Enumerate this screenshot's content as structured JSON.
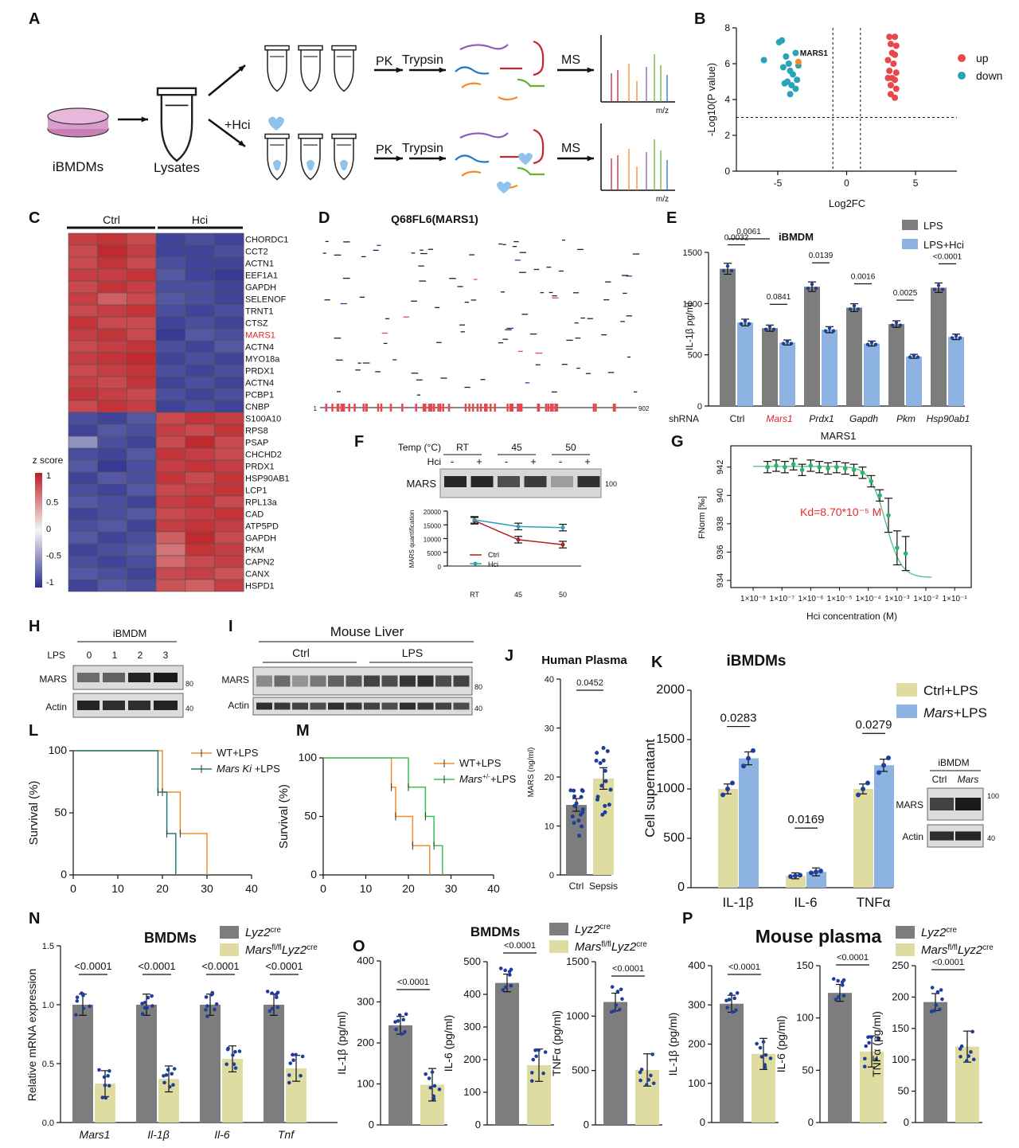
{
  "panel_letters": [
    "A",
    "B",
    "C",
    "D",
    "E",
    "F",
    "G",
    "H",
    "I",
    "J",
    "K",
    "L",
    "M",
    "N",
    "O",
    "P"
  ],
  "colors": {
    "grey": "#7d7d7d",
    "blue": "#8db3e2",
    "yellow": "#dedca0",
    "red": "#e8474b",
    "teal": "#2aa2b8",
    "orange": "#f08c2c",
    "green": "#2bb56a",
    "dark_red": "#b22025",
    "heat_red": "#bd1e24",
    "heat_blue": "#2d2f8e",
    "dot": "#1f3e9a"
  },
  "panel_a": {
    "cells_label": "iBMDMs",
    "lysates_label": "Lysates",
    "hci_label": "+Hci",
    "pk": "PK",
    "trypsin": "Trypsin",
    "ms": "MS",
    "mz": "m/z"
  },
  "chart_data": [
    {
      "panel": "B",
      "type": "scatter",
      "xlabel": "Log2FC",
      "ylabel": "-Log10(P value)",
      "xlim": [
        -8,
        8
      ],
      "ylim": [
        0,
        8
      ],
      "xticks": [
        "-5",
        "0",
        "5"
      ],
      "yticks": [
        "0",
        "2",
        "4",
        "6",
        "8"
      ],
      "highlight": "MARS1",
      "legend": [
        "up",
        "down"
      ],
      "up": [
        [
          3.1,
          7.5
        ],
        [
          3.5,
          7.5
        ],
        [
          3.2,
          7.1
        ],
        [
          3.6,
          7.0
        ],
        [
          3.3,
          6.6
        ],
        [
          3.5,
          6.5
        ],
        [
          3.0,
          6.2
        ],
        [
          3.4,
          6.0
        ],
        [
          3.1,
          5.6
        ],
        [
          3.6,
          5.5
        ],
        [
          3.0,
          5.2
        ],
        [
          3.3,
          5.2
        ],
        [
          3.5,
          5.1
        ],
        [
          3.2,
          4.8
        ],
        [
          3.6,
          4.6
        ],
        [
          3.2,
          4.3
        ],
        [
          3.5,
          4.1
        ]
      ],
      "down": [
        [
          -4.9,
          7.2
        ],
        [
          -4.7,
          7.3
        ],
        [
          -6.0,
          6.2
        ],
        [
          -4.4,
          6.4
        ],
        [
          -3.7,
          6.6
        ],
        [
          -4.2,
          6.0
        ],
        [
          -4.6,
          5.8
        ],
        [
          -3.5,
          5.9
        ],
        [
          -4.1,
          5.6
        ],
        [
          -3.9,
          5.4
        ],
        [
          -4.3,
          5.0
        ],
        [
          -3.6,
          5.1
        ],
        [
          -4.5,
          4.9
        ],
        [
          -4.0,
          4.8
        ],
        [
          -3.7,
          4.6
        ],
        [
          -4.1,
          4.3
        ]
      ],
      "mars1": [
        -3.5,
        6.1
      ]
    },
    {
      "panel": "C",
      "type": "heatmap",
      "groups": [
        "Ctrl",
        "Hci"
      ],
      "legend_title": "z score",
      "legend_ticks": [
        "1",
        "0.5",
        "0",
        "-0.5",
        "-1"
      ],
      "rows": [
        "CHORDC1",
        "CCT2",
        "ACTN1",
        "EEF1A1",
        "GAPDH",
        "SELENOF",
        "TRNT1",
        "CTSZ",
        "MARS1",
        "ACTN4",
        "MYO18a",
        "PRDX1",
        "ACTN4",
        "PCBP1",
        "CNBP",
        "S100A10",
        "RPS8",
        "PSAP",
        "CHCHD2",
        "PRDX1",
        "HSP90AB1",
        "LCP1",
        "RPL13a",
        "CAD",
        "ATP5PD",
        "GAPDH",
        "PKM",
        "CAPN2",
        "CANX",
        "HSPD1"
      ],
      "values": [
        [
          0.85,
          0.9,
          0.8,
          -0.9,
          -0.85,
          -0.9
        ],
        [
          0.8,
          0.95,
          0.85,
          -0.9,
          -0.9,
          -0.85
        ],
        [
          0.8,
          0.9,
          0.8,
          -0.85,
          -0.9,
          -0.9
        ],
        [
          0.85,
          0.85,
          0.9,
          -0.8,
          -0.9,
          -0.95
        ],
        [
          0.8,
          0.9,
          0.85,
          -0.85,
          -0.85,
          -0.9
        ],
        [
          0.85,
          0.7,
          0.8,
          -0.8,
          -0.85,
          -0.9
        ],
        [
          0.8,
          0.85,
          0.9,
          -0.85,
          -0.9,
          -0.85
        ],
        [
          0.9,
          0.8,
          0.8,
          -0.9,
          -0.85,
          -0.9
        ],
        [
          0.85,
          0.9,
          0.8,
          -0.95,
          -0.8,
          -0.85
        ],
        [
          0.8,
          0.85,
          0.9,
          -0.85,
          -0.9,
          -0.8
        ],
        [
          0.85,
          0.9,
          0.95,
          -0.9,
          -0.85,
          -0.9
        ],
        [
          0.8,
          0.85,
          0.9,
          -0.85,
          -0.9,
          -0.85
        ],
        [
          0.85,
          0.8,
          0.9,
          -0.9,
          -0.85,
          -0.9
        ],
        [
          0.9,
          0.85,
          0.8,
          -0.85,
          -0.9,
          -0.85
        ],
        [
          0.8,
          0.9,
          0.85,
          -0.9,
          -0.85,
          -0.9
        ],
        [
          -0.85,
          -0.9,
          -0.8,
          0.8,
          0.9,
          0.85
        ],
        [
          -0.9,
          -0.8,
          -0.85,
          0.85,
          0.8,
          0.9
        ],
        [
          -0.5,
          -0.85,
          -0.9,
          0.8,
          0.95,
          0.8
        ],
        [
          -0.85,
          -0.9,
          -0.8,
          0.9,
          0.85,
          0.8
        ],
        [
          -0.8,
          -0.95,
          -0.85,
          0.85,
          0.9,
          0.85
        ],
        [
          -0.9,
          -0.8,
          -0.85,
          0.9,
          0.8,
          0.9
        ],
        [
          -0.85,
          -0.9,
          -0.8,
          0.8,
          0.85,
          0.9
        ],
        [
          -0.8,
          -0.85,
          -0.9,
          0.85,
          0.9,
          0.8
        ],
        [
          -0.9,
          -0.85,
          -0.8,
          0.8,
          0.85,
          0.9
        ],
        [
          -0.85,
          -0.8,
          -0.9,
          0.85,
          0.9,
          0.85
        ],
        [
          -0.8,
          -0.9,
          -0.85,
          0.7,
          0.95,
          0.8
        ],
        [
          -0.9,
          -0.85,
          -0.8,
          0.6,
          0.9,
          0.85
        ],
        [
          -0.85,
          -0.9,
          -0.85,
          0.65,
          0.8,
          0.85
        ],
        [
          -0.8,
          -0.85,
          -0.9,
          0.8,
          0.85,
          0.75
        ],
        [
          -0.9,
          -0.8,
          -0.85,
          0.75,
          0.7,
          0.85
        ]
      ]
    },
    {
      "panel": "D",
      "type": "peptide_map",
      "title": "Q68FL6(MARS1)",
      "start": "1",
      "end": "902"
    },
    {
      "panel": "E",
      "type": "bar",
      "title": "iBMDM",
      "ylabel": "IL-1β pg/ml",
      "xlabel": "shRNA",
      "ylim": [
        0,
        1500
      ],
      "yticks": [
        "0",
        "500",
        "1000",
        "1500"
      ],
      "categories": [
        "Ctrl",
        "Mars1",
        "Prdx1",
        "Gapdh",
        "Pkm",
        "Hsp90ab1"
      ],
      "series": [
        {
          "name": "LPS",
          "values": [
            1340,
            760,
            1165,
            960,
            800,
            1155
          ]
        },
        {
          "name": "LPS+Hci",
          "values": [
            815,
            620,
            745,
            610,
            485,
            675
          ]
        }
      ],
      "pvalues": [
        "0.0032",
        "0.0841",
        "0.0139",
        "0.0016",
        "0.0025",
        "<0.0001"
      ],
      "p_extra": "0.0061"
    },
    {
      "panel": "F",
      "type": "line",
      "ylabel": "MARS quantification",
      "categories": [
        "RT",
        "45",
        "50"
      ],
      "ylim": [
        0,
        20000
      ],
      "yticks": [
        "0",
        "5000",
        "10000",
        "15000",
        "20000"
      ],
      "series": [
        {
          "name": "Ctrl",
          "values": [
            16500,
            9600,
            7800
          ]
        },
        {
          "name": "Hci",
          "values": [
            16800,
            14400,
            14000
          ]
        }
      ],
      "blot": {
        "temp_label": "Temp (°C)",
        "temps": [
          "RT",
          "45",
          "50"
        ],
        "hci_label": "Hci",
        "signs": [
          "-",
          "+",
          "-",
          "+",
          "-",
          "+"
        ],
        "protein": "MARS",
        "marker": "100"
      }
    },
    {
      "panel": "G",
      "type": "scatter",
      "title": "MARS1",
      "xlabel": "Hci concentration (M)",
      "ylabel": "FNorm [‰]",
      "annotation": "Kd=8.70*10⁻⁵ M",
      "ylim": [
        934,
        943
      ],
      "yticks": [
        "934",
        "936",
        "938",
        "940",
        "942"
      ],
      "xticks": [
        "1×10⁻⁸",
        "1×10⁻⁷",
        "1×10⁻⁶",
        "1×10⁻⁵",
        "1×10⁻⁴",
        "1×10⁻³",
        "1×10⁻²",
        "1×10⁻¹"
      ],
      "points_log10x": [
        [
          -7.5,
          942.0
        ],
        [
          -7.2,
          942.1
        ],
        [
          -6.9,
          942.0
        ],
        [
          -6.6,
          942.2
        ],
        [
          -6.3,
          941.8
        ],
        [
          -6.0,
          942.1
        ],
        [
          -5.7,
          942.0
        ],
        [
          -5.4,
          941.9
        ],
        [
          -5.1,
          942.0
        ],
        [
          -4.8,
          941.9
        ],
        [
          -4.5,
          941.8
        ],
        [
          -4.2,
          941.6
        ],
        [
          -3.9,
          941.0
        ],
        [
          -3.6,
          940.0
        ],
        [
          -3.3,
          938.6
        ],
        [
          -3.0,
          936.3
        ],
        [
          -2.7,
          935.9
        ]
      ]
    },
    {
      "panel": "J",
      "type": "bar",
      "title": "Human Plasma",
      "ylabel": "MARS (ng/ml)",
      "categories": [
        "Ctrl",
        "Sepsis"
      ],
      "values": [
        14.3,
        19.7
      ],
      "ylim": [
        0,
        40
      ],
      "yticks": [
        "0",
        "10",
        "20",
        "30",
        "40"
      ],
      "pvalue": "0.0452"
    },
    {
      "panel": "K",
      "type": "bar",
      "title": "iBMDMs",
      "ylabel": "Cell supernatant",
      "categories": [
        "IL-1β",
        "IL-6",
        "TNFα"
      ],
      "ylim": [
        0,
        2000
      ],
      "yticks": [
        "0",
        "500",
        "1000",
        "1500",
        "2000"
      ],
      "series": [
        {
          "name": "Ctrl+LPS",
          "values": [
            1000,
            120,
            1000
          ]
        },
        {
          "name": "Mars+LPS",
          "values": [
            1310,
            160,
            1240
          ]
        }
      ],
      "pvalues": [
        "0.0283",
        "0.0169",
        "0.0279"
      ],
      "blot": {
        "title": "iBMDM",
        "lanes": [
          "Ctrl",
          "Mars"
        ],
        "proteins": [
          "MARS",
          "Actin"
        ],
        "markers": [
          "100",
          "40"
        ]
      }
    },
    {
      "panel": "L",
      "type": "line",
      "ylabel": "Survival (%)",
      "xlim": [
        0,
        40
      ],
      "ylim": [
        0,
        100
      ],
      "xticks": [
        "0",
        "10",
        "20",
        "30",
        "40"
      ],
      "yticks": [
        "0",
        "50",
        "100"
      ],
      "series": [
        {
          "name": "WT+LPS",
          "steps": [
            [
              0,
              100
            ],
            [
              20,
              100
            ],
            [
              20,
              66.7
            ],
            [
              24,
              66.7
            ],
            [
              24,
              33.3
            ],
            [
              30,
              33.3
            ],
            [
              30,
              0
            ]
          ]
        },
        {
          "name": "Mars Ki +LPS",
          "steps": [
            [
              0,
              100
            ],
            [
              19,
              100
            ],
            [
              19,
              66.7
            ],
            [
              21,
              66.7
            ],
            [
              21,
              33.3
            ],
            [
              23,
              33.3
            ],
            [
              23,
              0
            ]
          ]
        }
      ]
    },
    {
      "panel": "M",
      "type": "line",
      "ylabel": "Survival (%)",
      "xlim": [
        0,
        40
      ],
      "ylim": [
        0,
        100
      ],
      "xticks": [
        "0",
        "10",
        "20",
        "30",
        "40"
      ],
      "yticks": [
        "0",
        "50",
        "100"
      ],
      "series": [
        {
          "name": "WT+LPS",
          "steps": [
            [
              0,
              100
            ],
            [
              16,
              100
            ],
            [
              16,
              75
            ],
            [
              17,
              75
            ],
            [
              17,
              50
            ],
            [
              21,
              50
            ],
            [
              21,
              25
            ],
            [
              25,
              25
            ],
            [
              25,
              0
            ]
          ]
        },
        {
          "name": "Mars+/-+LPS",
          "steps": [
            [
              0,
              100
            ],
            [
              20,
              100
            ],
            [
              20,
              75
            ],
            [
              24,
              75
            ],
            [
              24,
              50
            ],
            [
              26,
              50
            ],
            [
              26,
              25
            ],
            [
              28,
              25
            ],
            [
              28,
              0
            ]
          ]
        }
      ]
    },
    {
      "panel": "N",
      "type": "bar",
      "title": "BMDMs",
      "ylabel": "Relative mRNA expression",
      "categories": [
        "Mars1",
        "Il-1β",
        "Il-6",
        "Tnf"
      ],
      "ylim": [
        0,
        1.5
      ],
      "yticks": [
        "0.0",
        "0.5",
        "1.0",
        "1.5"
      ],
      "series": [
        {
          "name": "Lyz2cre",
          "values": [
            1.0,
            1.0,
            1.0,
            1.0
          ]
        },
        {
          "name": "Marsfl/flLyz2cre",
          "values": [
            0.33,
            0.37,
            0.54,
            0.46
          ]
        }
      ],
      "pvalues": [
        "<0.0001",
        "<0.0001",
        "<0.0001",
        "<0.0001"
      ]
    },
    {
      "panel": "O",
      "type": "bar",
      "title": "BMDMs",
      "subplots": [
        {
          "ylabel": "IL-1β (pg/ml)",
          "ylim": [
            0,
            400
          ],
          "yticks": [
            "0",
            "100",
            "200",
            "300",
            "400"
          ],
          "values": [
            243,
            98
          ],
          "pvalue": "<0.0001"
        },
        {
          "ylabel": "IL-6 (pg/ml)",
          "ylim": [
            0,
            500
          ],
          "yticks": [
            "0",
            "100",
            "200",
            "300",
            "400",
            "500"
          ],
          "values": [
            435,
            183
          ],
          "pvalue": "<0.0001"
        },
        {
          "ylabel": "TNFα (pg/ml)",
          "ylim": [
            0,
            1500
          ],
          "yticks": [
            "0",
            "500",
            "1000",
            "1500"
          ],
          "values": [
            1130,
            505
          ],
          "pvalue": "<0.0001"
        }
      ],
      "legend": [
        "Lyz2cre",
        "Marsfl/flLyz2cre"
      ]
    },
    {
      "panel": "P",
      "type": "bar",
      "title": "Mouse plasma",
      "subplots": [
        {
          "ylabel": "IL-1β (pg/ml)",
          "ylim": [
            0,
            400
          ],
          "yticks": [
            "0",
            "100",
            "200",
            "300",
            "400"
          ],
          "values": [
            303,
            175
          ],
          "pvalue": "<0.0001"
        },
        {
          "ylabel": "IL-6 (pg/ml)",
          "ylim": [
            0,
            150
          ],
          "yticks": [
            "0",
            "50",
            "100",
            "150"
          ],
          "values": [
            124,
            68
          ],
          "pvalue": "<0.0001"
        },
        {
          "ylabel": "TNFα (pg/ml)",
          "ylim": [
            0,
            250
          ],
          "yticks": [
            "0",
            "50",
            "100",
            "150",
            "200",
            "250"
          ],
          "values": [
            192,
            121
          ],
          "pvalue": "<0.0001"
        }
      ],
      "legend": [
        "Lyz2cre",
        "Marsfl/flLyz2cre"
      ]
    }
  ],
  "blot_h": {
    "title": "iBMDM",
    "lps_label": "LPS",
    "lanes": [
      "0",
      "1",
      "2",
      "3"
    ],
    "proteins": [
      "MARS",
      "Actin"
    ],
    "markers": [
      "80",
      "40"
    ]
  },
  "blot_i": {
    "title": "Mouse Liver",
    "groups": [
      "Ctrl",
      "LPS"
    ],
    "proteins": [
      "MARS",
      "Actin"
    ],
    "markers": [
      "80",
      "40"
    ]
  },
  "legend_text": {
    "lyz2": "Lyz2",
    "cre": "cre",
    "mars": "Mars",
    "flfl": "fl/fl",
    "mars_ki": "Mars Ki",
    "mars_het": "Mars",
    "het_sup": "+/-",
    "lps_suffix": "+LPS"
  }
}
